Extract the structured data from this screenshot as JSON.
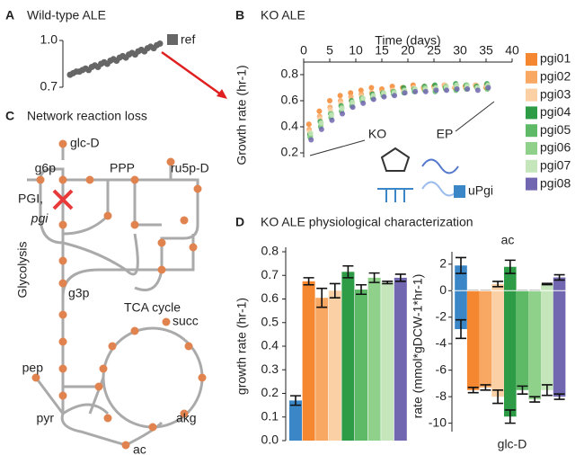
{
  "chart_data": [
    {
      "type": "scatter",
      "label": "A",
      "title": "Wild-type ALE",
      "values": [
        0.78,
        0.79,
        0.8,
        0.8,
        0.81,
        0.82,
        0.81,
        0.83,
        0.84,
        0.83,
        0.85,
        0.86,
        0.85,
        0.87,
        0.88,
        0.87,
        0.89,
        0.9,
        0.89,
        0.91,
        0.92,
        0.91,
        0.93,
        0.94,
        0.93,
        0.95,
        0.96,
        0.95,
        0.97,
        0.98
      ],
      "color": "#666666",
      "legend": "ref",
      "ylim": [
        0.7,
        1.0
      ],
      "yticks": [
        0.7,
        {
          "value": 1.0,
          "label": "1.0"
        }
      ]
    },
    {
      "type": "scatter",
      "label": "B",
      "title": "KO ALE",
      "xlabel": "Time (days)",
      "ylabel": "Growth rate (hr-1)",
      "x": [
        1,
        3,
        5,
        7,
        9,
        11,
        13,
        15,
        17,
        19,
        21,
        23,
        25,
        27,
        29,
        31,
        33,
        35
      ],
      "series": [
        {
          "name": "pgi01",
          "color": "#f4872f",
          "values": [
            0.42,
            0.52,
            0.6,
            0.64,
            0.66,
            0.68,
            0.7,
            0.69,
            0.71,
            0.7,
            0.72,
            0.7,
            0.71,
            0.72,
            0.7,
            0.71,
            0.72,
            0.7
          ]
        },
        {
          "name": "pgi02",
          "color": "#f8a862",
          "values": [
            0.38,
            0.48,
            0.55,
            0.6,
            0.63,
            0.65,
            0.66,
            0.67,
            0.68,
            0.69,
            0.7,
            0.69,
            0.7,
            0.71,
            0.7,
            0.7,
            0.71,
            0.72
          ]
        },
        {
          "name": "pgi03",
          "color": "#fbd0a5",
          "values": [
            0.36,
            0.46,
            0.53,
            0.58,
            0.6,
            0.63,
            0.65,
            0.66,
            0.68,
            0.68,
            0.7,
            0.71,
            0.7,
            0.72,
            0.71,
            0.7,
            0.72,
            0.71
          ]
        },
        {
          "name": "pgi04",
          "color": "#2e9c47",
          "values": [
            0.34,
            0.44,
            0.5,
            0.56,
            0.6,
            0.62,
            0.65,
            0.66,
            0.67,
            0.7,
            0.69,
            0.71,
            0.72,
            0.7,
            0.73,
            0.72,
            0.71,
            0.73
          ]
        },
        {
          "name": "pgi05",
          "color": "#5fba68",
          "values": [
            0.32,
            0.4,
            0.47,
            0.52,
            0.56,
            0.6,
            0.62,
            0.64,
            0.65,
            0.66,
            0.67,
            0.68,
            0.67,
            0.69,
            0.68,
            0.69,
            0.7,
            0.69
          ]
        },
        {
          "name": "pgi06",
          "color": "#8fd08a",
          "values": [
            0.33,
            0.42,
            0.5,
            0.55,
            0.58,
            0.61,
            0.63,
            0.65,
            0.67,
            0.67,
            0.69,
            0.7,
            0.69,
            0.71,
            0.7,
            0.72,
            0.7,
            0.71
          ]
        },
        {
          "name": "pgi07",
          "color": "#c5e6bb",
          "values": [
            0.35,
            0.43,
            0.49,
            0.54,
            0.59,
            0.62,
            0.64,
            0.66,
            0.66,
            0.68,
            0.69,
            0.69,
            0.7,
            0.7,
            0.72,
            0.71,
            0.7,
            0.72
          ]
        },
        {
          "name": "pgi08",
          "color": "#7166b0",
          "values": [
            0.3,
            0.38,
            0.45,
            0.5,
            0.55,
            0.58,
            0.61,
            0.63,
            0.64,
            0.66,
            0.67,
            0.67,
            0.68,
            0.68,
            0.69,
            0.69,
            0.68,
            0.7
          ]
        },
        {
          "name": "uPgi",
          "color": "#3a86c6",
          "values": [
            null,
            null,
            null,
            null,
            null,
            null,
            null,
            null,
            null,
            null,
            null,
            null,
            null,
            null,
            null,
            null,
            null,
            null
          ]
        }
      ],
      "xlim": [
        0,
        40
      ],
      "xticks": [
        0,
        5,
        10,
        15,
        20,
        25,
        30,
        35,
        40
      ],
      "ylim": [
        0.2,
        0.8
      ],
      "yticks": [
        0.2,
        0.4,
        0.6,
        0.8
      ],
      "annotations": [
        "KO",
        "EP"
      ]
    },
    {
      "type": "bar",
      "label": "D",
      "title": "KO ALE physiological characterization",
      "ylabel": "growth rate (hr-1)",
      "values": [
        0.17,
        0.675,
        0.605,
        0.635,
        0.715,
        0.64,
        0.69,
        0.67,
        0.69
      ],
      "errors": [
        0.02,
        0.015,
        0.04,
        0.03,
        0.025,
        0.02,
        0.02,
        0.005,
        0.015
      ],
      "colors": [
        "#3a86c6",
        "#f4872f",
        "#f8a862",
        "#fbd0a5",
        "#2e9c47",
        "#5fba68",
        "#8fd08a",
        "#c5e6bb",
        "#7166b0"
      ],
      "ylim": [
        0,
        0.8
      ],
      "yticks": [
        {
          "value": 0,
          "label": "0.0"
        },
        0.1,
        0.2,
        0.3,
        0.4,
        0.5,
        0.6,
        0.7,
        0.8
      ]
    },
    {
      "type": "bar",
      "ylabel": "rate (mmol*gDCW-1*hr-1)",
      "series": [
        {
          "name": "ac",
          "values": [
            1.9,
            0,
            0,
            0.5,
            1.8,
            0,
            0,
            0.5,
            1.0
          ],
          "errors": [
            0.6,
            0,
            0,
            0.2,
            0.5,
            0,
            0,
            0.05,
            0.2
          ]
        },
        {
          "name": "glc-D",
          "values": [
            -2.9,
            -7.5,
            -7.3,
            -8,
            -9.5,
            -7.5,
            -8.2,
            -7.5,
            -8
          ],
          "errors": [
            0.7,
            0.2,
            0.2,
            0.5,
            0.5,
            0.3,
            0.2,
            0.4,
            0.2
          ]
        }
      ],
      "colors": [
        "#3a86c6",
        "#f4872f",
        "#f8a862",
        "#fbd0a5",
        "#2e9c47",
        "#5fba68",
        "#8fd08a",
        "#c5e6bb",
        "#7166b0"
      ],
      "ylim": [
        -10.5,
        2.8
      ],
      "yticks": [
        -10,
        -8,
        -6,
        -4,
        -2,
        0,
        2
      ]
    }
  ],
  "diagram": {
    "label": "C",
    "title": "Network reaction loss",
    "nodes": [
      "glc-D",
      "g6p",
      "PPP",
      "ru5p-D",
      "PGI,",
      "pgi",
      "Glycolysis",
      "g3p",
      "TCA cycle",
      "succ",
      "pep",
      "pyr",
      "akg",
      "ac"
    ]
  }
}
